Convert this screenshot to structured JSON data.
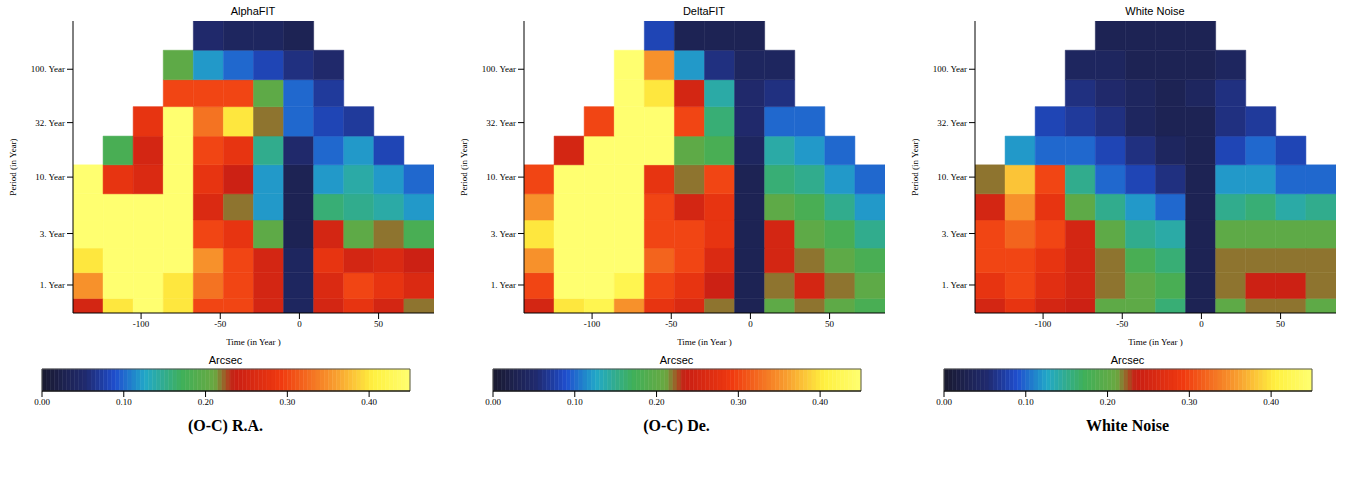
{
  "chart_data": [
    {
      "type": "heatmap",
      "title": "AlphaFIT",
      "caption": "(O-C) R.A.",
      "xlabel": "Time (in Year )",
      "ylabel": "Period (in Year)",
      "log": "y",
      "xlim": [
        -143,
        85
      ],
      "xticks": [
        -100,
        -50,
        0,
        50
      ],
      "ylim": [
        0.55,
        280
      ],
      "yticks": [
        {
          "value": 1,
          "label": "1. Year"
        },
        {
          "value": 3,
          "label": "3. Year"
        },
        {
          "value": 10,
          "label": "10. Year"
        },
        {
          "value": 32,
          "label": "32. Year"
        },
        {
          "value": 100,
          "label": "100. Year"
        }
      ],
      "x_edges": [
        -143,
        -124,
        -105,
        -86,
        -67,
        -48,
        -29,
        -10,
        9,
        28,
        47,
        66,
        85
      ],
      "y_edges": [
        0.55,
        0.75,
        1.3,
        2.2,
        4,
        7,
        13,
        24,
        45,
        80,
        150,
        280
      ],
      "cells": [
        [
          0.25,
          0.4,
          0.45,
          0.4,
          0.3,
          0.3,
          0.25,
          0.04,
          0.25,
          0.28,
          0.25,
          0.22
        ],
        [
          0.35,
          0.45,
          0.45,
          0.4,
          0.33,
          0.3,
          0.25,
          0.04,
          0.26,
          0.3,
          0.28,
          0.26
        ],
        [
          0.4,
          0.45,
          0.45,
          0.45,
          0.35,
          0.3,
          0.25,
          0.04,
          0.28,
          0.25,
          0.26,
          0.24
        ],
        [
          0.45,
          0.45,
          0.45,
          0.45,
          0.3,
          0.28,
          0.2,
          0.03,
          0.25,
          0.2,
          0.22,
          0.18
        ],
        [
          0.45,
          0.45,
          0.45,
          0.45,
          0.26,
          0.22,
          0.12,
          0.03,
          0.16,
          0.15,
          0.14,
          0.12
        ],
        [
          0.45,
          0.28,
          0.26,
          0.45,
          0.28,
          0.24,
          0.12,
          0.03,
          0.12,
          0.14,
          0.12,
          0.1
        ],
        [
          null,
          0.18,
          0.25,
          0.45,
          0.3,
          0.28,
          0.15,
          0.05,
          0.1,
          0.12,
          0.08,
          null
        ],
        [
          null,
          null,
          0.28,
          0.45,
          0.33,
          0.4,
          0.22,
          0.1,
          0.08,
          0.07,
          null,
          null
        ],
        [
          null,
          null,
          null,
          0.3,
          0.3,
          0.3,
          0.2,
          0.1,
          0.07,
          null,
          null,
          null
        ],
        [
          null,
          null,
          null,
          0.2,
          0.12,
          0.1,
          0.08,
          0.06,
          0.05,
          null,
          null,
          null
        ],
        [
          null,
          null,
          null,
          null,
          0.05,
          0.04,
          0.04,
          0.03,
          null,
          null,
          null,
          null
        ]
      ],
      "colorbar": {
        "label": "Arcsec",
        "range": [
          0,
          0.45
        ],
        "ticks": [
          {
            "value": 0,
            "label": "0.00"
          },
          {
            "value": 0.1,
            "label": "0.10"
          },
          {
            "value": 0.2,
            "label": "0.20"
          },
          {
            "value": 0.3,
            "label": "0.30"
          },
          {
            "value": 0.4,
            "label": "0.40"
          }
        ]
      }
    },
    {
      "type": "heatmap",
      "title": "DeltaFIT",
      "caption": "(O-C) De.",
      "xlabel": "Time (in Year )",
      "ylabel": "Period (in Year)",
      "log": "y",
      "xlim": [
        -143,
        85
      ],
      "xticks": [
        -100,
        -50,
        0,
        50
      ],
      "ylim": [
        0.55,
        280
      ],
      "yticks": [
        {
          "value": 1,
          "label": "1. Year"
        },
        {
          "value": 3,
          "label": "3. Year"
        },
        {
          "value": 10,
          "label": "10. Year"
        },
        {
          "value": 32,
          "label": "32. Year"
        },
        {
          "value": 100,
          "label": "100. Year"
        }
      ],
      "x_edges": [
        -143,
        -124,
        -105,
        -86,
        -67,
        -48,
        -29,
        -10,
        9,
        28,
        47,
        66,
        85
      ],
      "y_edges": [
        0.55,
        0.75,
        1.3,
        2.2,
        4,
        7,
        13,
        24,
        45,
        80,
        150,
        280
      ],
      "cells": [
        [
          0.25,
          0.4,
          0.42,
          0.35,
          0.28,
          0.26,
          0.22,
          0.03,
          0.2,
          0.22,
          0.2,
          0.18
        ],
        [
          0.3,
          0.45,
          0.45,
          0.42,
          0.3,
          0.28,
          0.24,
          0.03,
          0.22,
          0.25,
          0.22,
          0.2
        ],
        [
          0.35,
          0.45,
          0.45,
          0.45,
          0.32,
          0.3,
          0.26,
          0.03,
          0.25,
          0.22,
          0.2,
          0.18
        ],
        [
          0.4,
          0.45,
          0.45,
          0.45,
          0.3,
          0.3,
          0.28,
          0.03,
          0.25,
          0.2,
          0.18,
          0.15
        ],
        [
          0.35,
          0.45,
          0.45,
          0.45,
          0.3,
          0.25,
          0.28,
          0.03,
          0.2,
          0.18,
          0.15,
          0.12
        ],
        [
          0.3,
          0.45,
          0.45,
          0.45,
          0.28,
          0.22,
          0.3,
          0.03,
          0.16,
          0.15,
          0.12,
          0.1
        ],
        [
          null,
          0.25,
          0.45,
          0.45,
          0.45,
          0.2,
          0.18,
          0.04,
          0.14,
          0.12,
          0.1,
          null
        ],
        [
          null,
          null,
          0.3,
          0.45,
          0.45,
          0.3,
          0.16,
          0.05,
          0.1,
          0.1,
          null,
          null
        ],
        [
          null,
          null,
          null,
          0.45,
          0.4,
          0.25,
          0.14,
          0.05,
          0.06,
          null,
          null,
          null
        ],
        [
          null,
          null,
          null,
          0.45,
          0.35,
          0.12,
          0.06,
          0.04,
          0.04,
          null,
          null,
          null
        ],
        [
          null,
          null,
          null,
          null,
          0.08,
          0.03,
          0.03,
          0.03,
          null,
          null,
          null,
          null
        ]
      ],
      "colorbar": {
        "label": "Arcsec",
        "range": [
          0,
          0.45
        ],
        "ticks": [
          {
            "value": 0,
            "label": "0.00"
          },
          {
            "value": 0.1,
            "label": "0.10"
          },
          {
            "value": 0.2,
            "label": "0.20"
          },
          {
            "value": 0.3,
            "label": "0.30"
          },
          {
            "value": 0.4,
            "label": "0.40"
          }
        ]
      }
    },
    {
      "type": "heatmap",
      "title": "White Noise",
      "caption": "White Noise",
      "xlabel": "Time (in Year )",
      "ylabel": "Period (in Year)",
      "log": "y",
      "xlim": [
        -143,
        85
      ],
      "xticks": [
        -100,
        -50,
        0,
        50
      ],
      "ylim": [
        0.55,
        280
      ],
      "yticks": [
        {
          "value": 1,
          "label": "1. Year"
        },
        {
          "value": 3,
          "label": "3. Year"
        },
        {
          "value": 10,
          "label": "10. Year"
        },
        {
          "value": 32,
          "label": "32. Year"
        },
        {
          "value": 100,
          "label": "100. Year"
        }
      ],
      "x_edges": [
        -143,
        -124,
        -105,
        -86,
        -67,
        -48,
        -29,
        -10,
        9,
        28,
        47,
        66,
        85
      ],
      "y_edges": [
        0.55,
        0.75,
        1.3,
        2.2,
        4,
        7,
        13,
        24,
        45,
        80,
        150,
        280
      ],
      "cells": [
        [
          0.25,
          0.28,
          0.25,
          0.24,
          0.2,
          0.2,
          0.16,
          0.03,
          0.2,
          0.22,
          0.22,
          0.2
        ],
        [
          0.28,
          0.3,
          0.27,
          0.25,
          0.22,
          0.2,
          0.18,
          0.03,
          0.22,
          0.24,
          0.24,
          0.22
        ],
        [
          0.3,
          0.3,
          0.28,
          0.25,
          0.22,
          0.18,
          0.16,
          0.03,
          0.22,
          0.22,
          0.22,
          0.22
        ],
        [
          0.3,
          0.32,
          0.3,
          0.25,
          0.2,
          0.15,
          0.14,
          0.03,
          0.2,
          0.2,
          0.2,
          0.2
        ],
        [
          0.25,
          0.35,
          0.28,
          0.2,
          0.15,
          0.12,
          0.1,
          0.03,
          0.15,
          0.16,
          0.14,
          0.15
        ],
        [
          0.22,
          0.38,
          0.3,
          0.15,
          0.1,
          0.08,
          0.06,
          0.03,
          0.12,
          0.12,
          0.1,
          0.1
        ],
        [
          null,
          0.12,
          0.1,
          0.1,
          0.08,
          0.06,
          0.04,
          0.03,
          0.08,
          0.1,
          0.08,
          null
        ],
        [
          null,
          null,
          0.08,
          0.07,
          0.06,
          0.04,
          0.03,
          0.03,
          0.06,
          0.07,
          null,
          null
        ],
        [
          null,
          null,
          null,
          0.06,
          0.05,
          0.04,
          0.03,
          0.04,
          0.06,
          null,
          null,
          null
        ],
        [
          null,
          null,
          null,
          0.04,
          0.04,
          0.03,
          0.03,
          0.03,
          0.04,
          null,
          null,
          null
        ],
        [
          null,
          null,
          null,
          null,
          0.03,
          0.03,
          0.03,
          0.03,
          null,
          null,
          null,
          null
        ]
      ],
      "colorbar": {
        "label": "Arcsec",
        "range": [
          0,
          0.45
        ],
        "ticks": [
          {
            "value": 0,
            "label": "0.00"
          },
          {
            "value": 0.1,
            "label": "0.10"
          },
          {
            "value": 0.2,
            "label": "0.20"
          },
          {
            "value": 0.3,
            "label": "0.30"
          },
          {
            "value": 0.4,
            "label": "0.40"
          }
        ]
      }
    }
  ]
}
